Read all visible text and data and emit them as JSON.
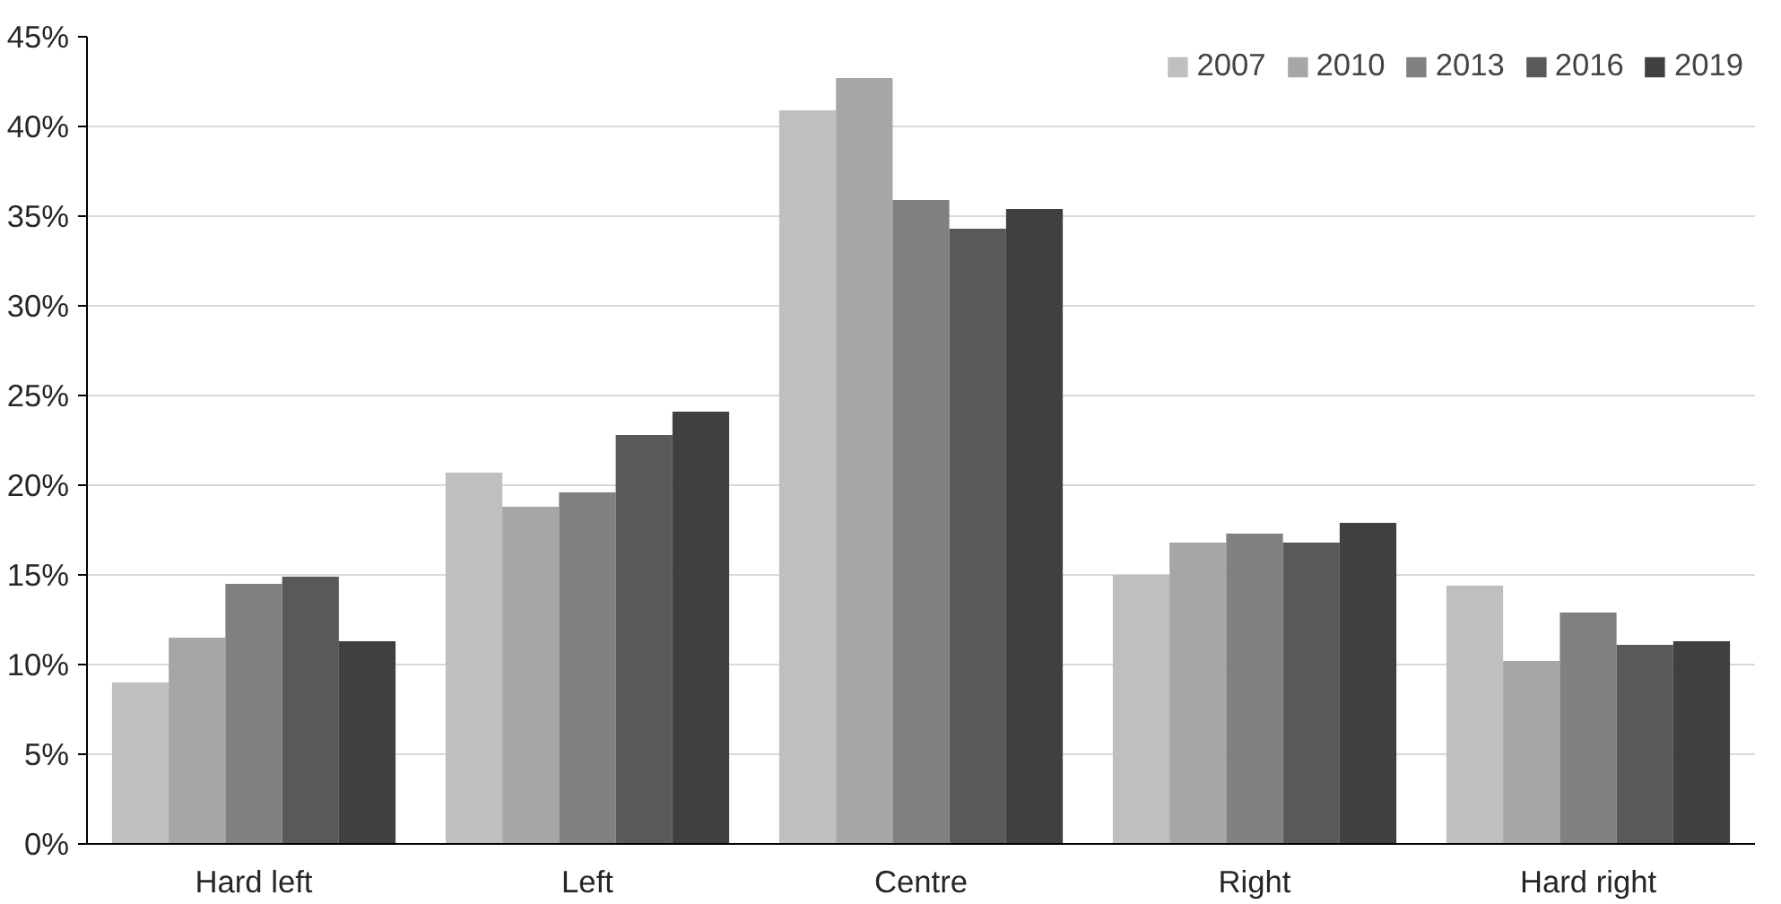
{
  "chart_data": {
    "type": "bar",
    "categories": [
      "Hard left",
      "Left",
      "Centre",
      "Right",
      "Hard right"
    ],
    "series": [
      {
        "name": "2007",
        "color": "#bfbfbf",
        "values": [
          9.0,
          20.7,
          40.9,
          15.0,
          14.4
        ]
      },
      {
        "name": "2010",
        "color": "#a6a6a6",
        "values": [
          11.5,
          18.8,
          42.7,
          16.8,
          10.2
        ]
      },
      {
        "name": "2013",
        "color": "#808080",
        "values": [
          14.5,
          19.6,
          35.9,
          17.3,
          12.9
        ]
      },
      {
        "name": "2016",
        "color": "#595959",
        "values": [
          14.9,
          22.8,
          34.3,
          16.8,
          11.1
        ]
      },
      {
        "name": "2019",
        "color": "#404040",
        "values": [
          11.3,
          24.1,
          35.4,
          17.9,
          11.3
        ]
      }
    ],
    "ylim": [
      0,
      45
    ],
    "yticks": [
      {
        "value": 0,
        "label": "0%"
      },
      {
        "value": 5,
        "label": "5%"
      },
      {
        "value": 10,
        "label": "10%"
      },
      {
        "value": 15,
        "label": "15%"
      },
      {
        "value": 20,
        "label": "20%"
      },
      {
        "value": 25,
        "label": "25%"
      },
      {
        "value": 30,
        "label": "30%"
      },
      {
        "value": 35,
        "label": "35%"
      },
      {
        "value": 40,
        "label": "40%"
      },
      {
        "value": 45,
        "label": "45%"
      }
    ],
    "grid": "y",
    "legend": "top right"
  }
}
